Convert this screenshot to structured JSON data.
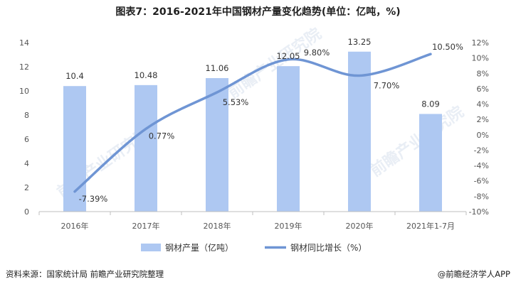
{
  "title": "图表7：2016-2021年中国钢材产量变化趋势(单位：亿吨，%)",
  "source": "资料来源：国家统计局 前瞻产业研究院整理",
  "brand": "@前瞻经济学人APP",
  "watermark": "前瞻产业研究院",
  "colors": {
    "bar": "#aec8f2",
    "line": "#6f95d4",
    "axis": "#bfbfbf",
    "text": "#333333"
  },
  "chart_data": {
    "type": "bar",
    "categories": [
      "2016年",
      "2017年",
      "2018年",
      "2019年",
      "2020年",
      "2021年1-7月"
    ],
    "series": [
      {
        "name": "钢材产量（亿吨）",
        "type": "bar",
        "axis": "left",
        "values": [
          10.4,
          10.48,
          11.06,
          12.05,
          13.25,
          8.09
        ],
        "labels": [
          "10.4",
          "10.48",
          "11.06",
          "12.05",
          "13.25",
          "8.09"
        ]
      },
      {
        "name": "钢材同比增长（%）",
        "type": "line",
        "axis": "right",
        "values": [
          -7.39,
          0.77,
          5.53,
          9.8,
          7.7,
          10.5
        ],
        "labels": [
          "-7.39%",
          "0.77%",
          "5.53%",
          "9.80%",
          "7.70%",
          "10.50%"
        ]
      }
    ],
    "left_axis": {
      "min": 0,
      "max": 14,
      "step": 2,
      "ticks": [
        "0",
        "2",
        "4",
        "6",
        "8",
        "10",
        "12",
        "14"
      ]
    },
    "right_axis": {
      "min": -10,
      "max": 12,
      "step": 2,
      "ticks": [
        "-10%",
        "-8%",
        "-6%",
        "-4%",
        "-2%",
        "0%",
        "2%",
        "4%",
        "6%",
        "8%",
        "10%",
        "12%"
      ]
    },
    "grid": false,
    "legend_position": "bottom"
  }
}
